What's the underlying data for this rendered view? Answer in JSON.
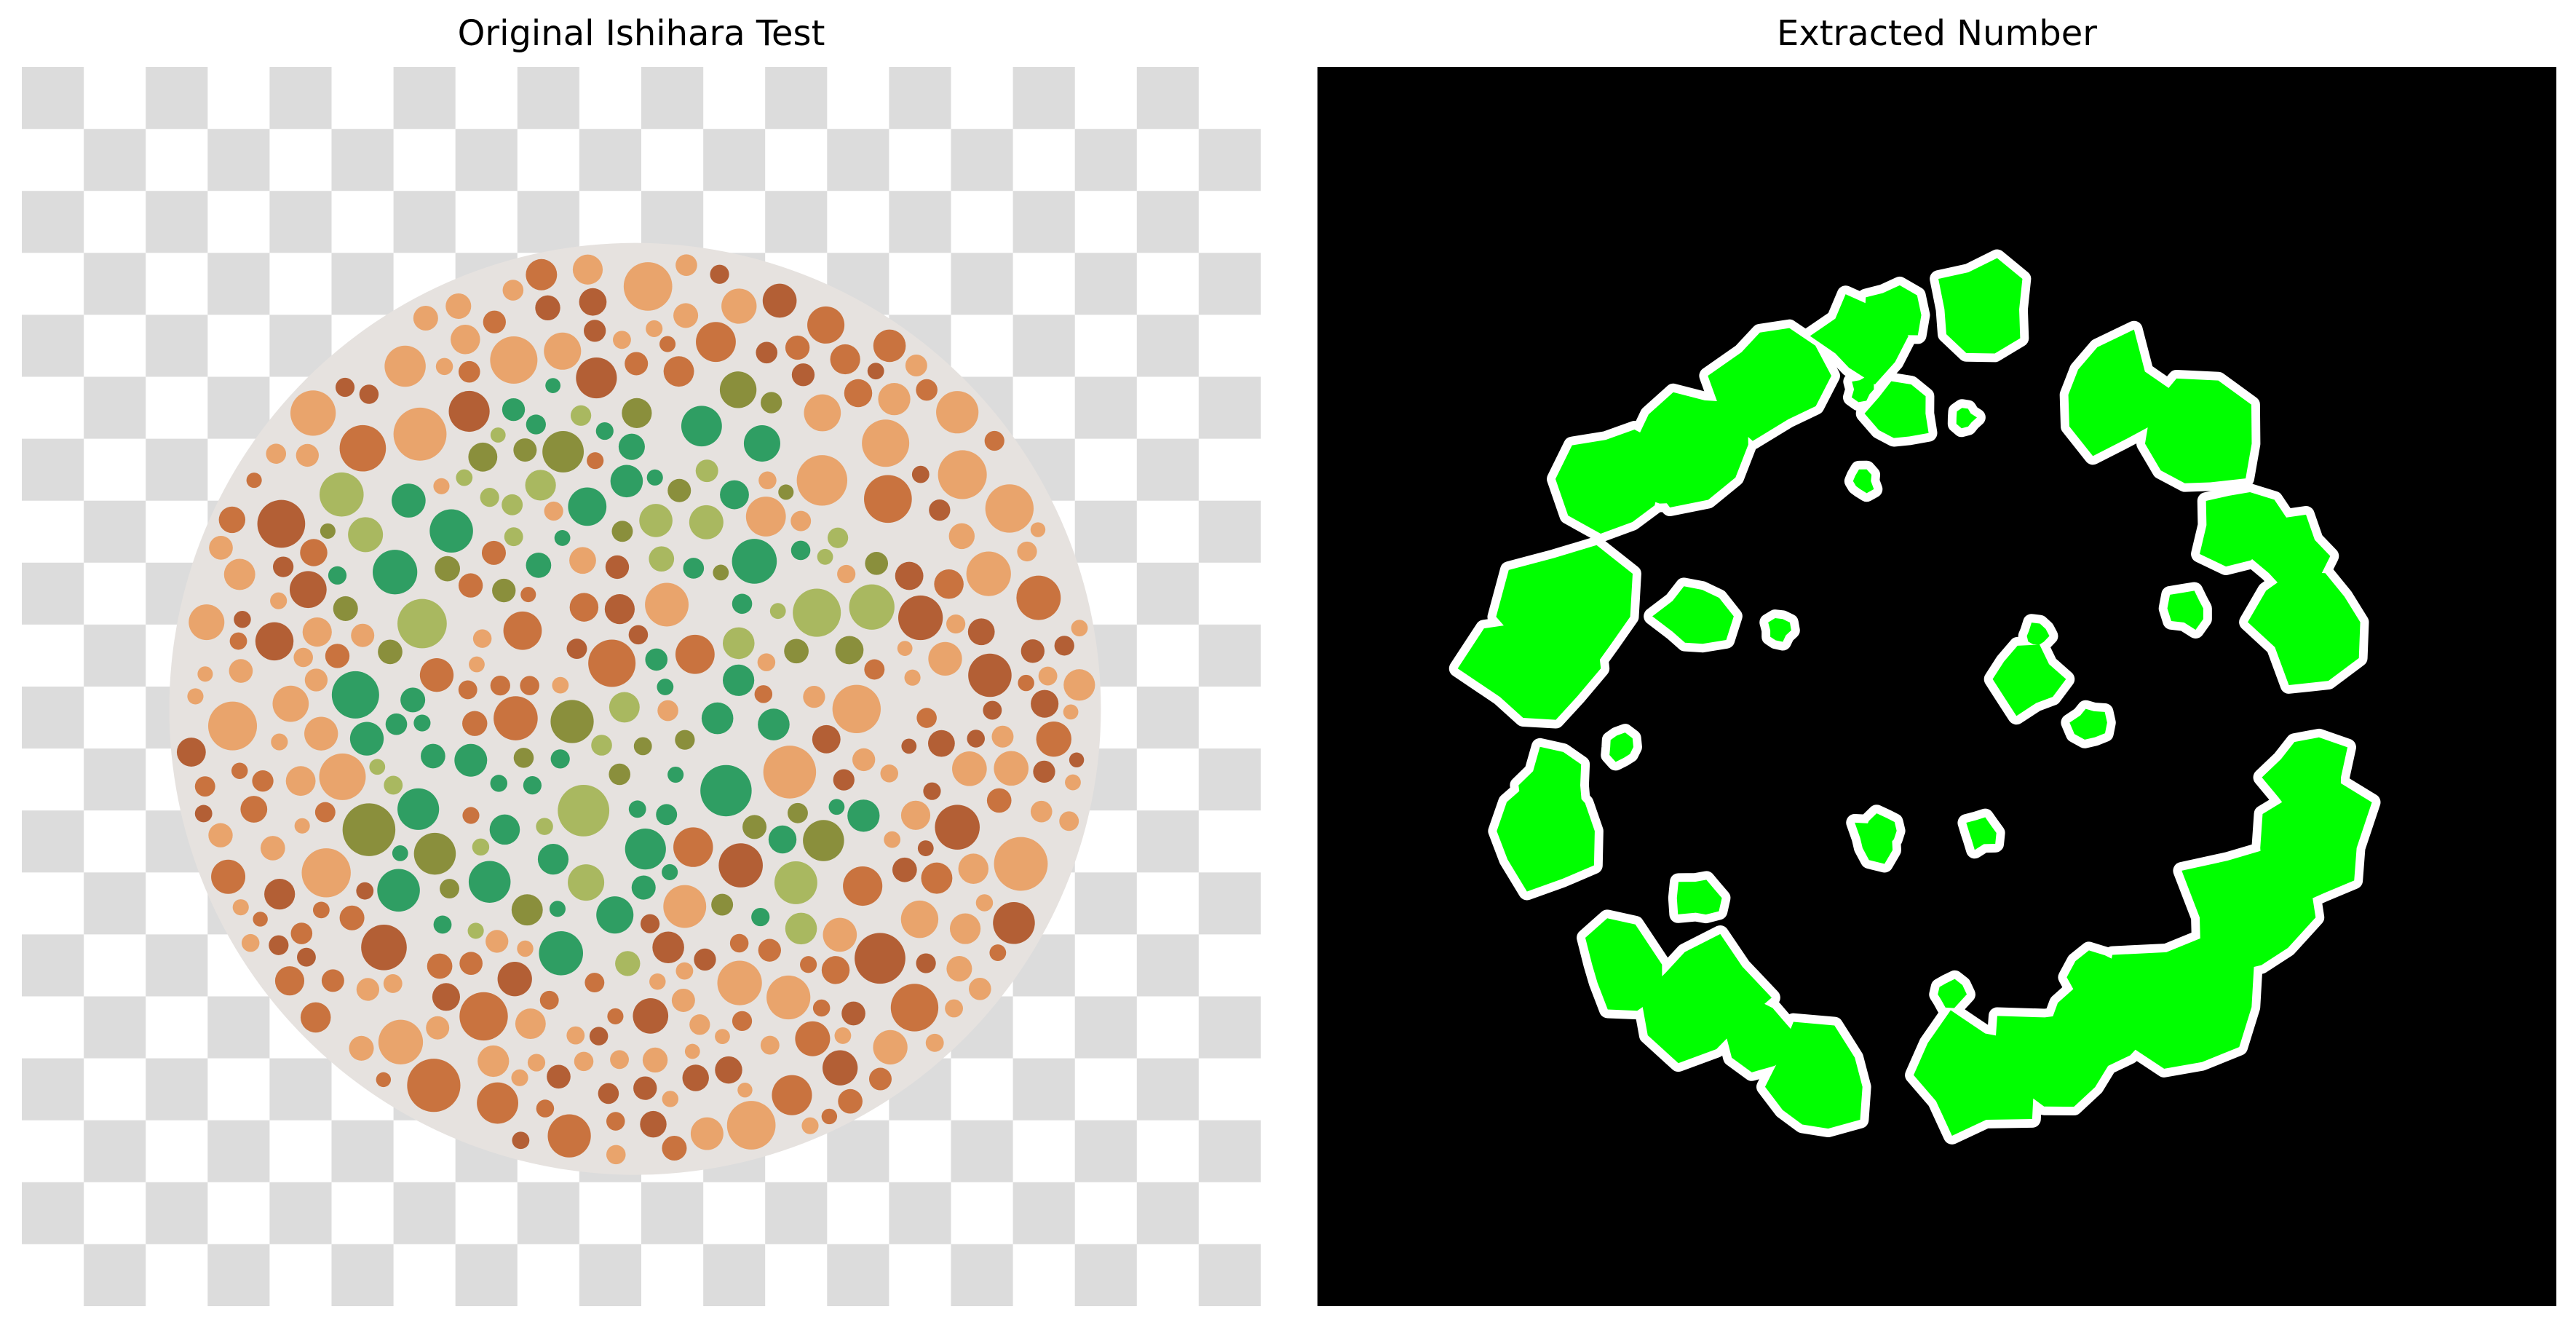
{
  "figure": {
    "left_panel": {
      "title": "Original Ishihara Test"
    },
    "right_panel": {
      "title": "Extracted Number"
    }
  },
  "colors": {
    "checker_light": "#ffffff",
    "checker_dark": "#dcdcdc",
    "plate_background": "#e6e2df",
    "dot_orange_light": "#e9a46c",
    "dot_orange_dark": "#c9733f",
    "dot_brown": "#b35f35",
    "dot_green": "#2f9e63",
    "dot_olive": "#8a8f3c",
    "dot_yellow_green": "#a9b860",
    "mask_background": "#000000",
    "mask_fill": "#00ff00",
    "mask_outline": "#ffffff"
  }
}
